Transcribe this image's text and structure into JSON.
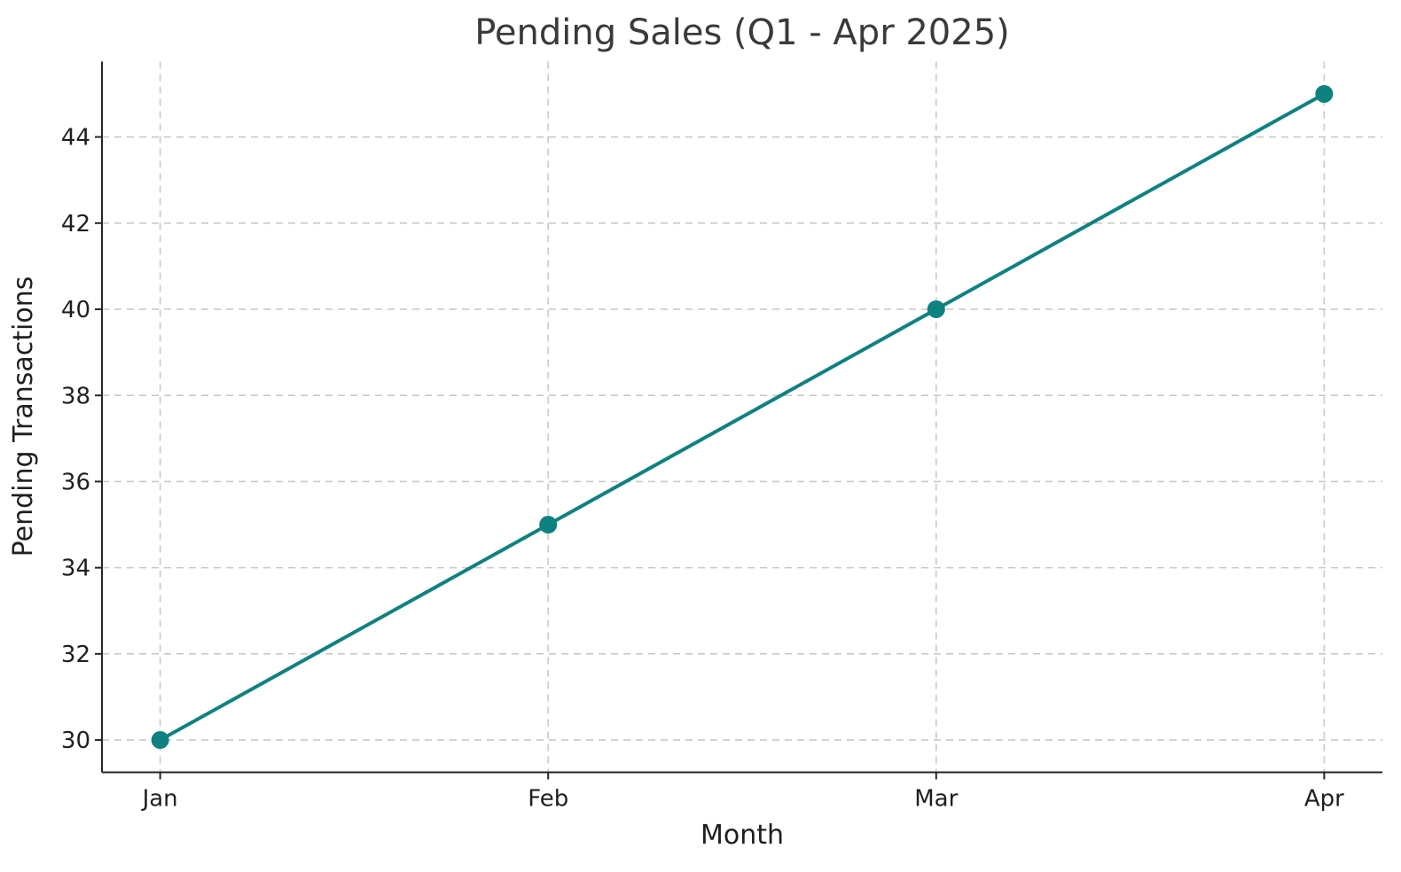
{
  "chart_data": {
    "type": "line",
    "title": "Pending Sales (Q1 - Apr 2025)",
    "xlabel": "Month",
    "ylabel": "Pending Transactions",
    "categories": [
      "Jan",
      "Feb",
      "Mar",
      "Apr"
    ],
    "values": [
      30,
      35,
      40,
      45
    ],
    "yticks": [
      30,
      32,
      34,
      36,
      38,
      40,
      42,
      44
    ],
    "ylim": [
      29.25,
      45.75
    ],
    "xlim_pad": 0.15,
    "line_color": "#0e8181",
    "marker": "circle",
    "grid": {
      "visible": true,
      "style": "dashed",
      "color": "#c9c9c9"
    },
    "legend": "none",
    "colors": {
      "background": "#ffffff",
      "spine": "#262626",
      "tick_label": "#1f1f1f",
      "axis_label": "#1f1f1f",
      "title": "#3a3a3a"
    }
  }
}
